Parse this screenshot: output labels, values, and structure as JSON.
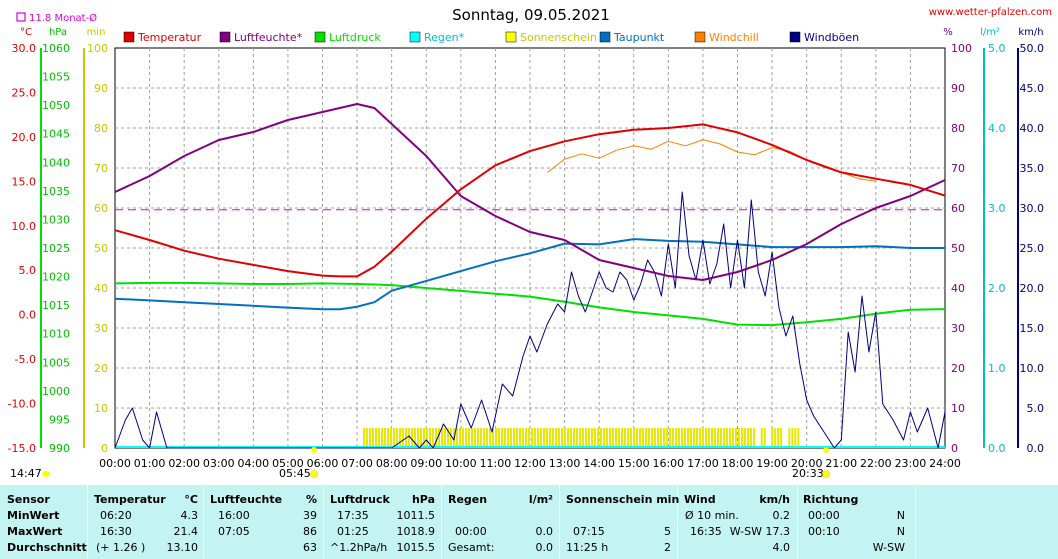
{
  "header": {
    "title": "Sonntag, 09.05.2021",
    "site": "www.wetter-pfalzen.com",
    "monat_marker": "11.8 Monat-Ø"
  },
  "axis_units": {
    "temp": "°C",
    "pressure": "hPa",
    "minutes": "min",
    "humidity": "%",
    "rain": "l/m²",
    "wind": "km/h"
  },
  "legend": [
    {
      "label": "Temperatur",
      "color": "#e00000"
    },
    {
      "label": "Luftfeuchte*",
      "color": "#800080"
    },
    {
      "label": "Luftdruck",
      "color": "#00e000"
    },
    {
      "label": "Regen*",
      "color": "#00ffff"
    },
    {
      "label": "Sonnenschein",
      "color": "#ffff00"
    },
    {
      "label": "Taupunkt",
      "color": "#0070c0"
    },
    {
      "label": "Windchill",
      "color": "#ff8000"
    },
    {
      "label": "Windböen",
      "color": "#000080"
    }
  ],
  "ticks": {
    "temp": [
      "30.0",
      "25.0",
      "20.0",
      "15.0",
      "10.0",
      "5.0",
      "0.0",
      "-5.0",
      "-10.0",
      "-15.0"
    ],
    "pressure": [
      "1060",
      "1055",
      "1050",
      "1045",
      "1040",
      "1035",
      "1030",
      "1025",
      "1020",
      "1015",
      "1010",
      "1005",
      "1000",
      "995",
      "990"
    ],
    "minutes": [
      "100",
      "90",
      "80",
      "70",
      "60",
      "50",
      "40",
      "30",
      "20",
      "10",
      "0"
    ],
    "humidity": [
      "100",
      "90",
      "80",
      "70",
      "60",
      "50",
      "40",
      "30",
      "20",
      "10",
      "0"
    ],
    "rain": [
      "5.0",
      "4.0",
      "3.0",
      "2.0",
      "1.0",
      "0.0"
    ],
    "wind": [
      "50.0",
      "45.0",
      "40.0",
      "35.0",
      "30.0",
      "25.0",
      "20.0",
      "15.0",
      "10.0",
      "5.0",
      "0.0"
    ],
    "time": [
      "00:00",
      "01:00",
      "02:00",
      "03:00",
      "04:00",
      "05:00",
      "06:00",
      "07:00",
      "08:00",
      "09:00",
      "10:00",
      "11:00",
      "12:00",
      "13:00",
      "14:00",
      "15:00",
      "16:00",
      "17:00",
      "18:00",
      "19:00",
      "20:00",
      "21:00",
      "22:00",
      "23:00",
      "24:00"
    ]
  },
  "markers": {
    "moonrise": "14:47",
    "sunrise": "05:45",
    "sunset": "20:33"
  },
  "chart_data": {
    "type": "line",
    "title": "Sonntag, 09.05.2021",
    "x_unit": "hour",
    "xlim": [
      0,
      24
    ],
    "reference_line": {
      "name": "11.8 Monat-Ø",
      "axis": "temp",
      "value": 11.8
    },
    "series": [
      {
        "name": "Temperatur",
        "axis": "temp",
        "ylim": [
          -15,
          30
        ],
        "x": [
          0,
          1,
          2,
          3,
          4,
          5,
          6,
          6.5,
          7,
          7.5,
          8,
          9,
          10,
          11,
          12,
          13,
          14,
          15,
          16,
          17,
          18,
          19,
          20,
          21,
          22,
          23,
          24
        ],
        "values": [
          9.5,
          8.4,
          7.2,
          6.3,
          5.6,
          4.9,
          4.4,
          4.3,
          4.3,
          5.4,
          7.1,
          10.8,
          14.1,
          16.8,
          18.4,
          19.5,
          20.3,
          20.8,
          21.0,
          21.4,
          20.5,
          19.1,
          17.4,
          16.0,
          15.3,
          14.6,
          13.4
        ]
      },
      {
        "name": "Luftfeuchte*",
        "axis": "humidity",
        "ylim": [
          0,
          100
        ],
        "x": [
          0,
          1,
          2,
          3,
          4,
          5,
          6,
          6.5,
          7,
          7.5,
          8,
          9,
          10,
          11,
          12,
          13,
          14,
          15,
          16,
          17,
          18,
          19,
          20,
          21,
          22,
          23,
          24
        ],
        "values": [
          64,
          68,
          73,
          77,
          79,
          82,
          84,
          85,
          86,
          85,
          81,
          73,
          63,
          58,
          54,
          52,
          47,
          45,
          43,
          42,
          44,
          47,
          51,
          56,
          60,
          63,
          67
        ]
      },
      {
        "name": "Luftdruck",
        "axis": "pressure",
        "ylim": [
          990,
          1060
        ],
        "x": [
          0,
          1,
          2,
          3,
          4,
          5,
          6,
          7,
          8,
          9,
          10,
          11,
          12,
          13,
          14,
          15,
          16,
          17,
          18,
          19,
          20,
          21,
          22,
          23,
          24
        ],
        "values": [
          1018.8,
          1018.9,
          1018.9,
          1018.8,
          1018.7,
          1018.7,
          1018.8,
          1018.7,
          1018.5,
          1018.0,
          1017.5,
          1017.0,
          1016.5,
          1015.6,
          1014.6,
          1013.8,
          1013.2,
          1012.6,
          1011.6,
          1011.5,
          1012.0,
          1012.6,
          1013.5,
          1014.2,
          1014.3
        ]
      },
      {
        "name": "Taupunkt",
        "axis": "temp",
        "ylim": [
          -15,
          30
        ],
        "x": [
          0,
          1,
          2,
          3,
          4,
          5,
          6,
          6.5,
          7,
          7.5,
          8,
          9,
          10,
          11,
          12,
          13,
          14,
          15,
          16,
          17,
          18,
          19,
          20,
          21,
          22,
          23,
          24
        ],
        "values": [
          1.8,
          1.6,
          1.4,
          1.2,
          1.0,
          0.8,
          0.6,
          0.6,
          0.9,
          1.4,
          2.7,
          3.8,
          4.9,
          6.0,
          6.9,
          8.0,
          7.9,
          8.5,
          8.3,
          8.2,
          7.9,
          7.6,
          7.6,
          7.6,
          7.7,
          7.5,
          7.5
        ]
      },
      {
        "name": "Windchill",
        "axis": "temp",
        "ylim": [
          -15,
          30
        ],
        "x": [
          12.5,
          13,
          13.5,
          14,
          14.5,
          15,
          15.5,
          16,
          16.5,
          17,
          17.5,
          18,
          18.5,
          19,
          19.5,
          20,
          20.5,
          21,
          21.5,
          22
        ],
        "values": [
          16.0,
          17.5,
          18.1,
          17.6,
          18.5,
          19.0,
          18.6,
          19.5,
          19.0,
          19.7,
          19.2,
          18.3,
          18.0,
          18.8,
          18.4,
          17.4,
          16.6,
          16.0,
          15.3,
          15.0
        ]
      },
      {
        "name": "Windböen",
        "axis": "wind",
        "ylim": [
          0,
          50
        ],
        "x": [
          0,
          0.3,
          0.5,
          0.8,
          1,
          1.2,
          1.5,
          1.8,
          2,
          3,
          4,
          5,
          6,
          7,
          8,
          8.5,
          8.8,
          9,
          9.2,
          9.5,
          9.8,
          10,
          10.3,
          10.6,
          10.9,
          11.2,
          11.5,
          11.8,
          12,
          12.2,
          12.5,
          12.8,
          13,
          13.2,
          13.4,
          13.6,
          13.8,
          14,
          14.2,
          14.4,
          14.6,
          14.8,
          15,
          15.2,
          15.4,
          15.6,
          15.8,
          16,
          16.2,
          16.4,
          16.6,
          16.8,
          17,
          17.2,
          17.4,
          17.6,
          17.8,
          18,
          18.2,
          18.4,
          18.6,
          18.8,
          19,
          19.2,
          19.4,
          19.6,
          19.8,
          20,
          20.2,
          20.5,
          20.8,
          21,
          21.2,
          21.4,
          21.6,
          21.8,
          22,
          22.2,
          22.5,
          22.8,
          23,
          23.2,
          23.5,
          23.8,
          24
        ],
        "values": [
          0,
          3.5,
          5.0,
          1.0,
          0,
          4.5,
          0,
          0,
          0,
          0,
          0,
          0,
          0,
          0,
          0,
          1.5,
          0,
          1.0,
          0,
          3.0,
          1.0,
          5.5,
          2.5,
          6.0,
          2.0,
          8.0,
          6.5,
          11.5,
          14.0,
          12.0,
          15.5,
          18.0,
          17.0,
          22.0,
          19.0,
          17.0,
          19.5,
          22.0,
          20.0,
          19.5,
          22.0,
          21.0,
          18.5,
          20.5,
          23.5,
          22.0,
          19.0,
          25.5,
          20.0,
          32.0,
          24.0,
          21.0,
          26.0,
          20.5,
          23.0,
          28.0,
          20.0,
          26.0,
          20.0,
          31.0,
          22.0,
          19.0,
          24.5,
          17.5,
          14.0,
          16.5,
          10.5,
          6.0,
          4.0,
          2.0,
          0,
          1.0,
          14.5,
          9.5,
          19.0,
          12.0,
          17.0,
          5.5,
          3.5,
          1.0,
          4.5,
          2.0,
          5.0,
          0,
          4.5
        ]
      },
      {
        "name": "Sonnenschein",
        "axis": "minutes",
        "ylim": [
          0,
          100
        ],
        "bars": [
          [
            7.2,
            18.5,
            5
          ],
          [
            18.7,
            18.8,
            5
          ],
          [
            19.0,
            19.3,
            5
          ],
          [
            19.5,
            19.8,
            5
          ]
        ]
      }
    ]
  },
  "table": {
    "headers": {
      "sensor": "Sensor",
      "temp": "Temperatur",
      "temp_unit": "°C",
      "hum": "Luftfeuchte",
      "hum_unit": "%",
      "press": "Luftdruck",
      "press_unit": "hPa",
      "rain": "Regen",
      "rain_unit": "l/m²",
      "sun": "Sonnenschein min",
      "wind": "Wind",
      "wind_unit": "km/h",
      "dir": "Richtung"
    },
    "rows": [
      {
        "label": "MinWert",
        "temp_t": "06:20",
        "temp_v": "4.3",
        "hum_t": "16:00",
        "hum_v": "39",
        "press_t": "17:35",
        "press_v": "1011.5",
        "rain_t": "",
        "rain_v": "",
        "sun_t": "",
        "sun_v": "",
        "wind_t": "Ø 10 min.",
        "wind_v": "0.2",
        "dir_t": "00:00",
        "dir_v": "N"
      },
      {
        "label": "MaxWert",
        "temp_t": "16:30",
        "temp_v": "21.4",
        "hum_t": "07:05",
        "hum_v": "86",
        "press_t": "01:25",
        "press_v": "1018.9",
        "rain_t": "00:00",
        "rain_v": "0.0",
        "sun_t": "07:15",
        "sun_v": "5",
        "wind_t": "16:35",
        "wind_v": "W-SW 17.3",
        "dir_t": "00:10",
        "dir_v": "N"
      },
      {
        "label": "Durchschnitt",
        "temp_t": "(+ 1.26 )",
        "temp_v": "13.10",
        "hum_t": "",
        "hum_v": "63",
        "press_t": "^1.2hPa/h",
        "press_v": "1015.5",
        "rain_t": "Gesamt:",
        "rain_v": "0.0",
        "sun_t": "11:25 h",
        "sun_v": "2",
        "wind_t": "",
        "wind_v": "4.0",
        "dir_t": "",
        "dir_v": "W-SW"
      }
    ]
  }
}
